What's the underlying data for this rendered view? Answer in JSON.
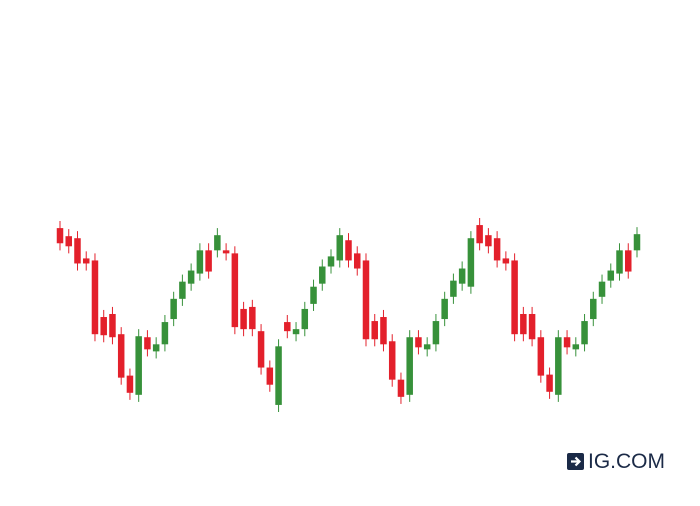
{
  "chart_data": {
    "type": "candlestick",
    "watermark": "IG.COM",
    "up_color": "#37913a",
    "down_color": "#e3202b",
    "open": [
      276,
      268,
      266,
      246,
      244,
      188,
      191,
      171,
      130,
      111,
      168,
      154,
      161,
      186,
      206,
      221,
      231,
      254,
      254,
      254,
      251,
      196,
      198,
      174,
      138,
      101,
      183,
      171,
      176,
      201,
      221,
      238,
      244,
      264,
      251,
      244,
      184,
      188,
      164,
      126,
      111,
      168,
      156,
      161,
      186,
      208,
      221,
      218,
      279,
      269,
      266,
      246,
      244,
      191,
      191,
      168,
      131,
      111,
      168,
      156,
      161,
      186,
      208,
      224,
      231,
      254,
      254
    ],
    "high": [
      283,
      275,
      273,
      253,
      251,
      195,
      198,
      178,
      137,
      176,
      175,
      168,
      190,
      213,
      230,
      241,
      261,
      261,
      276,
      261,
      258,
      203,
      205,
      181,
      145,
      166,
      190,
      183,
      203,
      225,
      245,
      255,
      276,
      271,
      258,
      251,
      191,
      195,
      171,
      133,
      175,
      175,
      168,
      191,
      213,
      231,
      243,
      273,
      286,
      276,
      273,
      253,
      251,
      198,
      198,
      175,
      138,
      175,
      175,
      168,
      191,
      213,
      230,
      241,
      261,
      261,
      277
    ],
    "low": [
      254,
      251,
      234,
      234,
      164,
      163,
      161,
      121,
      106,
      104,
      149,
      147,
      154,
      179,
      199,
      214,
      224,
      226,
      247,
      244,
      171,
      169,
      169,
      131,
      114,
      94,
      167,
      164,
      169,
      194,
      214,
      231,
      237,
      237,
      229,
      159,
      159,
      154,
      119,
      102,
      104,
      151,
      149,
      154,
      179,
      201,
      214,
      211,
      254,
      251,
      237,
      234,
      164,
      164,
      159,
      123,
      107,
      104,
      151,
      149,
      154,
      179,
      201,
      217,
      224,
      226,
      247
    ],
    "close": [
      261,
      258,
      241,
      241,
      171,
      170,
      168,
      128,
      113,
      169,
      156,
      161,
      183,
      206,
      223,
      234,
      254,
      233,
      269,
      251,
      178,
      176,
      176,
      138,
      121,
      159,
      174,
      176,
      196,
      218,
      238,
      248,
      269,
      244,
      236,
      166,
      166,
      161,
      126,
      109,
      168,
      158,
      161,
      184,
      206,
      224,
      236,
      266,
      261,
      258,
      244,
      241,
      171,
      171,
      166,
      130,
      114,
      168,
      158,
      161,
      184,
      206,
      223,
      234,
      254,
      233,
      270
    ]
  }
}
